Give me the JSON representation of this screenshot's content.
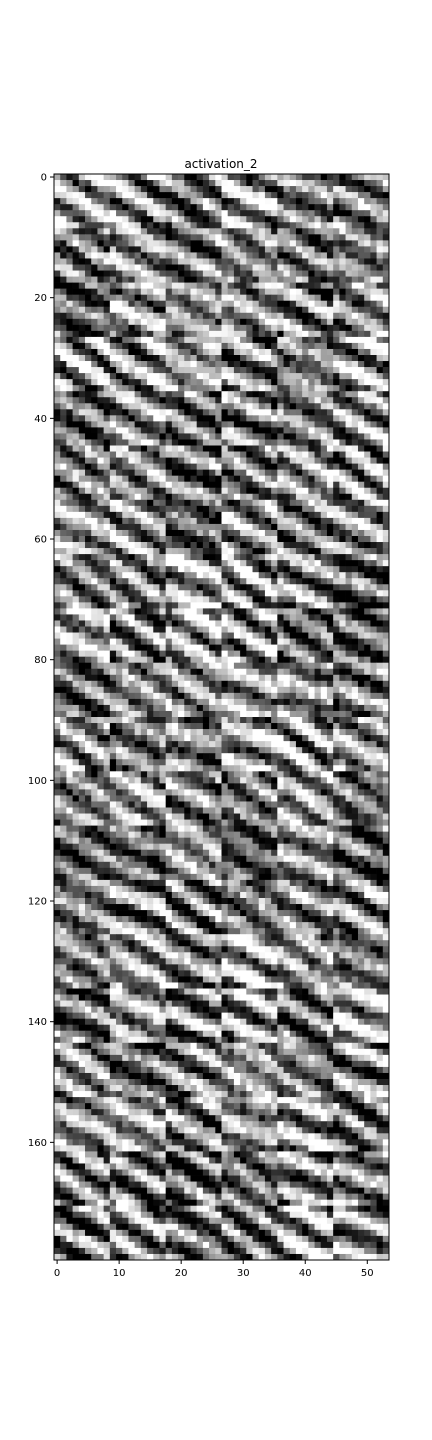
{
  "chart_data": {
    "type": "heatmap",
    "title": "activation_2",
    "xlabel": "",
    "ylabel": "",
    "colormap": "gray",
    "grid": false,
    "xlim": [
      -0.5,
      53.5
    ],
    "ylim": [
      179.5,
      -0.5
    ],
    "x_ticks": [
      0,
      10,
      20,
      30,
      40,
      50
    ],
    "y_ticks": [
      0,
      20,
      40,
      60,
      80,
      100,
      120,
      140,
      160
    ],
    "n_cols": 54,
    "n_rows": 180,
    "tile_grid": {
      "cols": 6,
      "rows": 20,
      "tile_size": 9
    }
  }
}
